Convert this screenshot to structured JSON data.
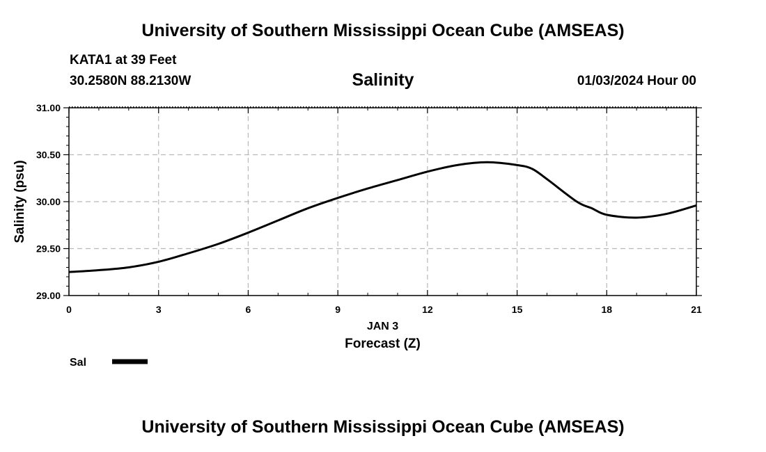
{
  "header": {
    "title_top": "University of Southern Mississippi Ocean Cube (AMSEAS)",
    "station": "KATA1 at 39 Feet",
    "coords": "30.2580N  88.2130W",
    "plot_title": "Salinity",
    "datetime": "01/03/2024 Hour 00"
  },
  "footer": {
    "title_bottom": "University of Southern Mississippi Ocean Cube (AMSEAS)"
  },
  "chart_data": {
    "type": "line",
    "title": "Salinity",
    "xlabel": "Forecast (Z)",
    "xlabel_date": "JAN 3",
    "ylabel": "Salinity (psu)",
    "xlim": [
      0,
      21
    ],
    "ylim": [
      29.0,
      31.0
    ],
    "x_ticks": [
      0,
      3,
      6,
      9,
      12,
      15,
      18,
      21
    ],
    "x_tick_labels": [
      "0",
      "3",
      "6",
      "9",
      "12",
      "15",
      "18",
      "21"
    ],
    "y_ticks": [
      29.0,
      29.5,
      30.0,
      30.5,
      31.0
    ],
    "y_tick_labels": [
      "29.00",
      "29.50",
      "30.00",
      "30.50",
      "31.00"
    ],
    "grid": true,
    "legend": [
      {
        "label": "Sal",
        "color": "#000000"
      }
    ],
    "series": [
      {
        "name": "Sal",
        "color": "#000000",
        "x": [
          0,
          1,
          2,
          3,
          4,
          5,
          6,
          7,
          8,
          9,
          10,
          11,
          12,
          13,
          14,
          15,
          15.5,
          16,
          17,
          17.5,
          18,
          19,
          20,
          21
        ],
        "y": [
          29.25,
          29.27,
          29.3,
          29.36,
          29.45,
          29.55,
          29.67,
          29.8,
          29.93,
          30.04,
          30.14,
          30.23,
          30.32,
          30.39,
          30.42,
          30.39,
          30.35,
          30.24,
          30.0,
          29.93,
          29.86,
          29.83,
          29.87,
          29.96
        ]
      }
    ]
  }
}
